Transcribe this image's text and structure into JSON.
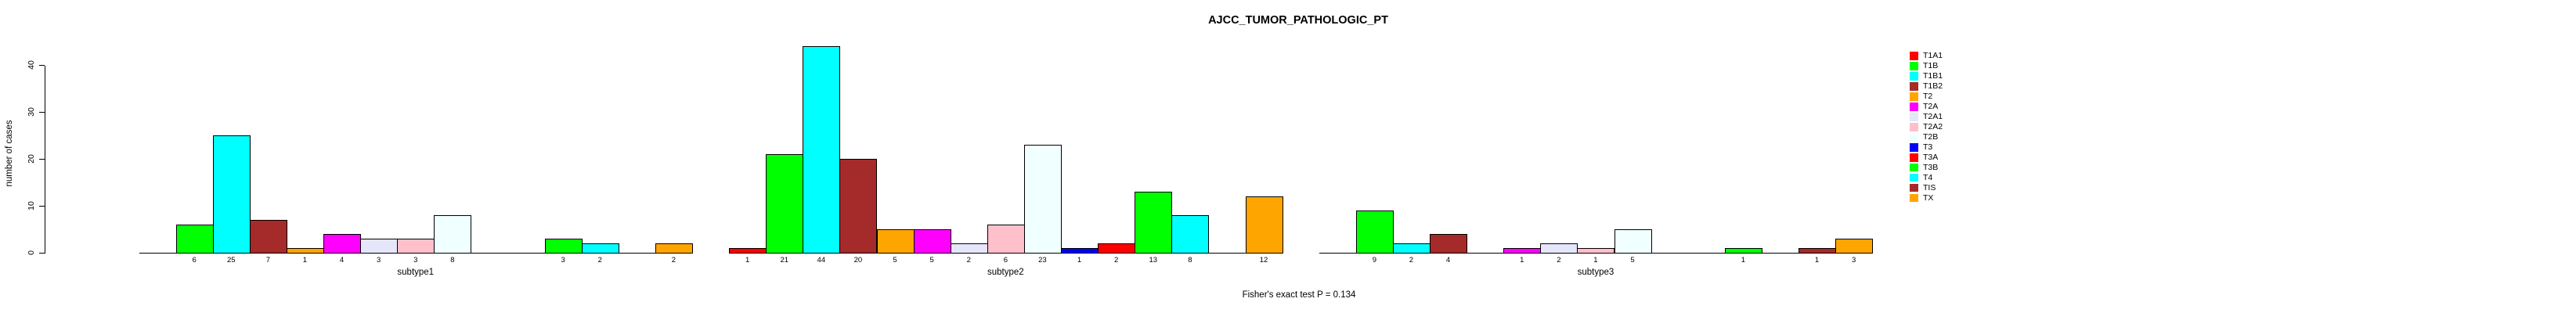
{
  "header": {
    "title": "AJCC_TUMOR_PATHOLOGIC_PT"
  },
  "footer": {
    "pvalue_text": "Fisher's exact test P = 0.134"
  },
  "y_axis": {
    "label": "number of cases",
    "ticks": [
      "0",
      "10",
      "20",
      "30",
      "40"
    ]
  },
  "chart_data": {
    "type": "bar",
    "title": "AJCC_TUMOR_PATHOLOGIC_PT",
    "xlabel": "",
    "ylabel": "number of cases",
    "ylim": [
      0,
      44
    ],
    "yticks": [
      0,
      10,
      20,
      30,
      40
    ],
    "grid": false,
    "legend_position": "right",
    "annotation": "Fisher's exact test P = 0.134",
    "categories": [
      "T1A1",
      "T1B",
      "T1B1",
      "T1B2",
      "T2",
      "T2A",
      "T2A1",
      "T2A2",
      "T2B",
      "T3",
      "T3A",
      "T3B",
      "T4",
      "TIS",
      "TX"
    ],
    "category_colors": [
      "#FF0000",
      "#00FF00",
      "#00FFFF",
      "#A52A2A",
      "#FFA500",
      "#FF00FF",
      "#E6E6FA",
      "#FFC0CB",
      "#F0FFFF",
      "#0000FF",
      "#FF0000",
      "#00FF00",
      "#00FFFF",
      "#A52A2A",
      "#FFA500"
    ],
    "groups": [
      "subtype1",
      "subtype2",
      "subtype3"
    ],
    "series": [
      {
        "name": "subtype1",
        "values": [
          0,
          6,
          25,
          7,
          1,
          4,
          3,
          3,
          8,
          0,
          0,
          3,
          2,
          0,
          2
        ]
      },
      {
        "name": "subtype2",
        "values": [
          1,
          21,
          44,
          20,
          5,
          5,
          2,
          6,
          23,
          1,
          2,
          13,
          8,
          0,
          12
        ]
      },
      {
        "name": "subtype3",
        "values": [
          0,
          9,
          2,
          4,
          0,
          1,
          2,
          1,
          5,
          0,
          0,
          1,
          0,
          1,
          3
        ]
      }
    ],
    "bar_border_color": "#000000"
  }
}
